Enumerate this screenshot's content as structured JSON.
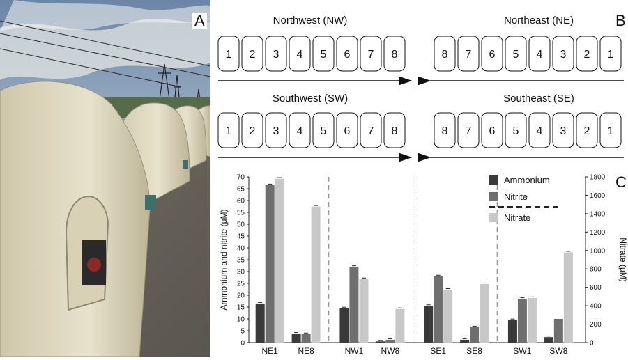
{
  "panels": {
    "a": "A",
    "b": "B",
    "c": "C"
  },
  "schematic": {
    "rows": [
      {
        "label": "Northwest (NW)",
        "boxes": [
          "1",
          "2",
          "3",
          "4",
          "5",
          "6",
          "7",
          "8"
        ],
        "direction": "right"
      },
      {
        "label": "Northeast (NE)",
        "boxes": [
          "8",
          "7",
          "6",
          "5",
          "4",
          "3",
          "2",
          "1"
        ],
        "direction": "left"
      },
      {
        "label": "Southwest (SW)",
        "boxes": [
          "1",
          "2",
          "3",
          "4",
          "5",
          "6",
          "7",
          "8"
        ],
        "direction": "right"
      },
      {
        "label": "Southeast (SE)",
        "boxes": [
          "8",
          "7",
          "6",
          "5",
          "4",
          "3",
          "2",
          "1"
        ],
        "direction": "left"
      }
    ]
  },
  "chart_data": {
    "type": "bar",
    "categories": [
      "NE1",
      "NE8",
      "NW1",
      "NW8",
      "SE1",
      "SE8",
      "SW1",
      "SW8"
    ],
    "groups_separated_by_dashed_lines": true,
    "series": [
      {
        "name": "Ammonium",
        "axis": "left",
        "color": "#3a3a3a",
        "values": [
          16.5,
          3.8,
          14.5,
          0.5,
          15.5,
          1.2,
          9.5,
          2.3
        ]
      },
      {
        "name": "Nitrite",
        "axis": "left",
        "color": "#6f6f6f",
        "values": [
          66.5,
          3.6,
          32.0,
          1.2,
          28.0,
          6.5,
          18.5,
          10.0
        ]
      },
      {
        "name": "Nitrate",
        "axis": "right",
        "color": "#c8c8c8",
        "values": [
          1780,
          1478,
          690,
          365,
          575,
          635,
          485,
          980
        ]
      }
    ],
    "ylabel_left": "Ammonium and nitrite (μM)",
    "ylabel_right": "Nitrate (μM)",
    "ylim_left": [
      0,
      70
    ],
    "ylim_right": [
      0,
      1800
    ],
    "yticks_left": [
      "0",
      "5",
      "10",
      "15",
      "20",
      "25",
      "30",
      "35",
      "40",
      "45",
      "50",
      "55",
      "60",
      "65",
      "70"
    ],
    "yticks_right": [
      "0",
      "200",
      "400",
      "600",
      "800",
      "1000",
      "1200",
      "1400",
      "1600",
      "1800"
    ],
    "legend_placement": "top-right"
  }
}
